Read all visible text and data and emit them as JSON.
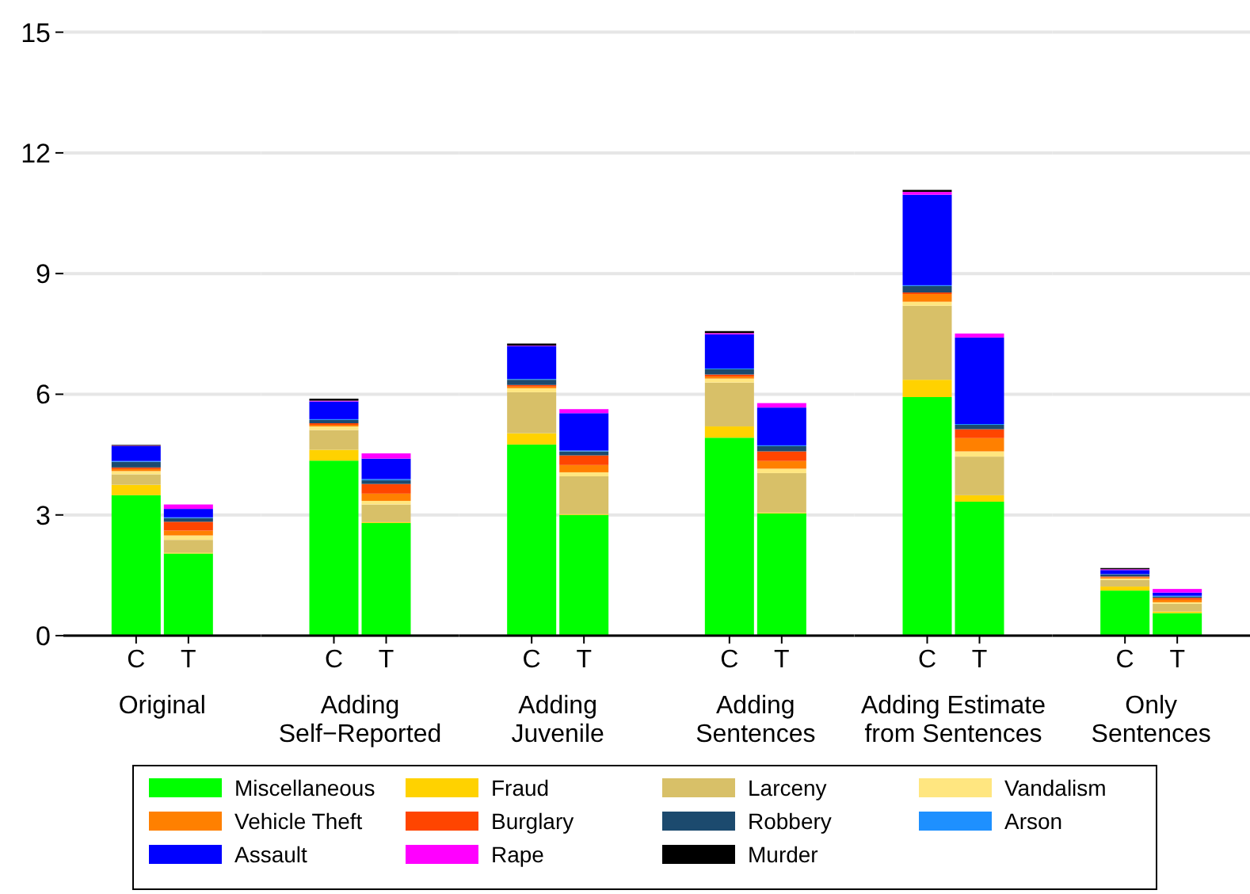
{
  "chart_data": [
    {
      "type": "bar",
      "stacked": true,
      "categories": [
        "C",
        "T"
      ],
      "xlabel": "Original",
      "ylim": [
        0,
        15.8
      ],
      "yticks": [
        0,
        3,
        6,
        9,
        12,
        15
      ],
      "grid": "y",
      "legend": "bottom",
      "series": [
        {
          "name": "Miscellaneous",
          "color": "#00ff00",
          "values": [
            3.49,
            2.04
          ]
        },
        {
          "name": "Fraud",
          "color": "#ffd200",
          "values": [
            0.26,
            0.02
          ]
        },
        {
          "name": "Larceny",
          "color": "#d8c068",
          "values": [
            0.26,
            0.32
          ]
        },
        {
          "name": "Vandalism",
          "color": "#ffe680",
          "values": [
            0.08,
            0.11
          ]
        },
        {
          "name": "Vehicle Theft",
          "color": "#ff8000",
          "values": [
            0.05,
            0.12
          ]
        },
        {
          "name": "Burglary",
          "color": "#ff4500",
          "values": [
            0.04,
            0.22
          ]
        },
        {
          "name": "Robbery",
          "color": "#1c4a6e",
          "values": [
            0.14,
            0.09
          ]
        },
        {
          "name": "Arson",
          "color": "#1e90ff",
          "values": [
            0.02,
            0.02
          ]
        },
        {
          "name": "Assault",
          "color": "#0000ff",
          "values": [
            0.37,
            0.21
          ]
        },
        {
          "name": "Rape",
          "color": "#ff00ff",
          "values": [
            0.01,
            0.11
          ]
        },
        {
          "name": "Murder",
          "color": "#000000",
          "values": [
            0.02,
            0
          ]
        }
      ]
    },
    {
      "type": "bar",
      "stacked": true,
      "categories": [
        "C",
        "T"
      ],
      "xlabel": "Adding\nSelf−Reported",
      "ylim": [
        0,
        15.8
      ],
      "yticks": [
        0,
        3,
        6,
        9,
        12,
        15
      ],
      "grid": "y",
      "tick_labels": "x",
      "series": [
        {
          "color": "#00ff00",
          "values": [
            4.35,
            2.8
          ]
        },
        {
          "color": "#ffd200",
          "values": [
            0.27,
            0.02
          ]
        },
        {
          "color": "#d8c068",
          "values": [
            0.49,
            0.44
          ]
        },
        {
          "color": "#ffe680",
          "values": [
            0.09,
            0.09
          ]
        },
        {
          "color": "#ff8000",
          "values": [
            0.04,
            0.18
          ]
        },
        {
          "color": "#ff4500",
          "values": [
            0.04,
            0.24
          ]
        },
        {
          "color": "#1c4a6e",
          "values": [
            0.08,
            0.09
          ]
        },
        {
          "color": "#1e90ff",
          "values": [
            0.02,
            0.03
          ]
        },
        {
          "color": "#0000ff",
          "values": [
            0.44,
            0.51
          ]
        },
        {
          "color": "#ff00ff",
          "values": [
            0.02,
            0.13
          ]
        },
        {
          "color": "#000000",
          "values": [
            0.05,
            0
          ]
        }
      ]
    },
    {
      "type": "bar",
      "stacked": true,
      "categories": [
        "C",
        "T"
      ],
      "xlabel": "Adding\nJuvenile",
      "ylim": [
        0,
        15.8
      ],
      "yticks": [
        0,
        3,
        6,
        9,
        12,
        15
      ],
      "grid": "y",
      "tick_labels": "x",
      "series": [
        {
          "color": "#00ff00",
          "values": [
            4.75,
            3.0
          ]
        },
        {
          "color": "#ffd200",
          "values": [
            0.28,
            0.02
          ]
        },
        {
          "color": "#d8c068",
          "values": [
            1.02,
            0.94
          ]
        },
        {
          "color": "#ffe680",
          "values": [
            0.1,
            0.1
          ]
        },
        {
          "color": "#ff8000",
          "values": [
            0.04,
            0.18
          ]
        },
        {
          "color": "#ff4500",
          "values": [
            0.04,
            0.24
          ]
        },
        {
          "color": "#1c4a6e",
          "values": [
            0.13,
            0.1
          ]
        },
        {
          "color": "#1e90ff",
          "values": [
            0.02,
            0.02
          ]
        },
        {
          "color": "#0000ff",
          "values": [
            0.82,
            0.93
          ]
        },
        {
          "color": "#ff00ff",
          "values": [
            0.01,
            0.1
          ]
        },
        {
          "color": "#000000",
          "values": [
            0.05,
            0
          ]
        }
      ]
    },
    {
      "type": "bar",
      "stacked": true,
      "categories": [
        "C",
        "T"
      ],
      "xlabel": "Adding\nSentences",
      "ylim": [
        0,
        15.8
      ],
      "yticks": [
        0,
        3,
        6,
        9,
        12,
        15
      ],
      "grid": "y",
      "tick_labels": "x",
      "series": [
        {
          "color": "#00ff00",
          "values": [
            4.92,
            3.04
          ]
        },
        {
          "color": "#ffd200",
          "values": [
            0.28,
            0.02
          ]
        },
        {
          "color": "#d8c068",
          "values": [
            1.09,
            0.98
          ]
        },
        {
          "color": "#ffe680",
          "values": [
            0.1,
            0.11
          ]
        },
        {
          "color": "#ff8000",
          "values": [
            0.05,
            0.19
          ]
        },
        {
          "color": "#ff4500",
          "values": [
            0.05,
            0.24
          ]
        },
        {
          "color": "#1c4a6e",
          "values": [
            0.13,
            0.13
          ]
        },
        {
          "color": "#1e90ff",
          "values": [
            0.02,
            0.02
          ]
        },
        {
          "color": "#0000ff",
          "values": [
            0.85,
            0.94
          ]
        },
        {
          "color": "#ff00ff",
          "values": [
            0.03,
            0.11
          ]
        },
        {
          "color": "#000000",
          "values": [
            0.05,
            0
          ]
        }
      ]
    },
    {
      "type": "bar",
      "stacked": true,
      "categories": [
        "C",
        "T"
      ],
      "xlabel": "Adding Estimate\nfrom Sentences",
      "ylim": [
        0,
        15.8
      ],
      "yticks": [
        0,
        3,
        6,
        9,
        12,
        15
      ],
      "grid": "y",
      "tick_labels": "x",
      "series": [
        {
          "color": "#00ff00",
          "values": [
            5.93,
            3.33
          ]
        },
        {
          "color": "#ffd200",
          "values": [
            0.43,
            0.16
          ]
        },
        {
          "color": "#d8c068",
          "values": [
            1.84,
            0.96
          ]
        },
        {
          "color": "#ffe680",
          "values": [
            0.1,
            0.13
          ]
        },
        {
          "color": "#ff8000",
          "values": [
            0.19,
            0.33
          ]
        },
        {
          "color": "#ff4500",
          "values": [
            0.04,
            0.22
          ]
        },
        {
          "color": "#1c4a6e",
          "values": [
            0.16,
            0.11
          ]
        },
        {
          "color": "#1e90ff",
          "values": [
            0.02,
            0.02
          ]
        },
        {
          "color": "#0000ff",
          "values": [
            2.25,
            2.15
          ]
        },
        {
          "color": "#ff00ff",
          "values": [
            0.07,
            0.1
          ]
        },
        {
          "color": "#000000",
          "values": [
            0.05,
            0
          ]
        }
      ]
    },
    {
      "type": "bar",
      "stacked": true,
      "categories": [
        "C",
        "T"
      ],
      "xlabel": "Only\nSentences",
      "ylim": [
        0,
        15.8
      ],
      "yticks": [
        0,
        3,
        6,
        9,
        12,
        15
      ],
      "grid": "y",
      "tick_labels": "x",
      "series": [
        {
          "color": "#00ff00",
          "values": [
            1.12,
            0.56
          ]
        },
        {
          "color": "#ffd200",
          "values": [
            0.1,
            0.04
          ]
        },
        {
          "color": "#d8c068",
          "values": [
            0.16,
            0.19
          ]
        },
        {
          "color": "#ffe680",
          "values": [
            0.04,
            0.04
          ]
        },
        {
          "color": "#ff8000",
          "values": [
            0.03,
            0.06
          ]
        },
        {
          "color": "#ff4500",
          "values": [
            0.02,
            0.05
          ]
        },
        {
          "color": "#1c4a6e",
          "values": [
            0.05,
            0.03
          ]
        },
        {
          "color": "#1e90ff",
          "values": [
            0.01,
            0.02
          ]
        },
        {
          "color": "#0000ff",
          "values": [
            0.1,
            0.08
          ]
        },
        {
          "color": "#ff00ff",
          "values": [
            0.02,
            0.09
          ]
        },
        {
          "color": "#000000",
          "values": [
            0.03,
            0
          ]
        }
      ]
    }
  ]
}
